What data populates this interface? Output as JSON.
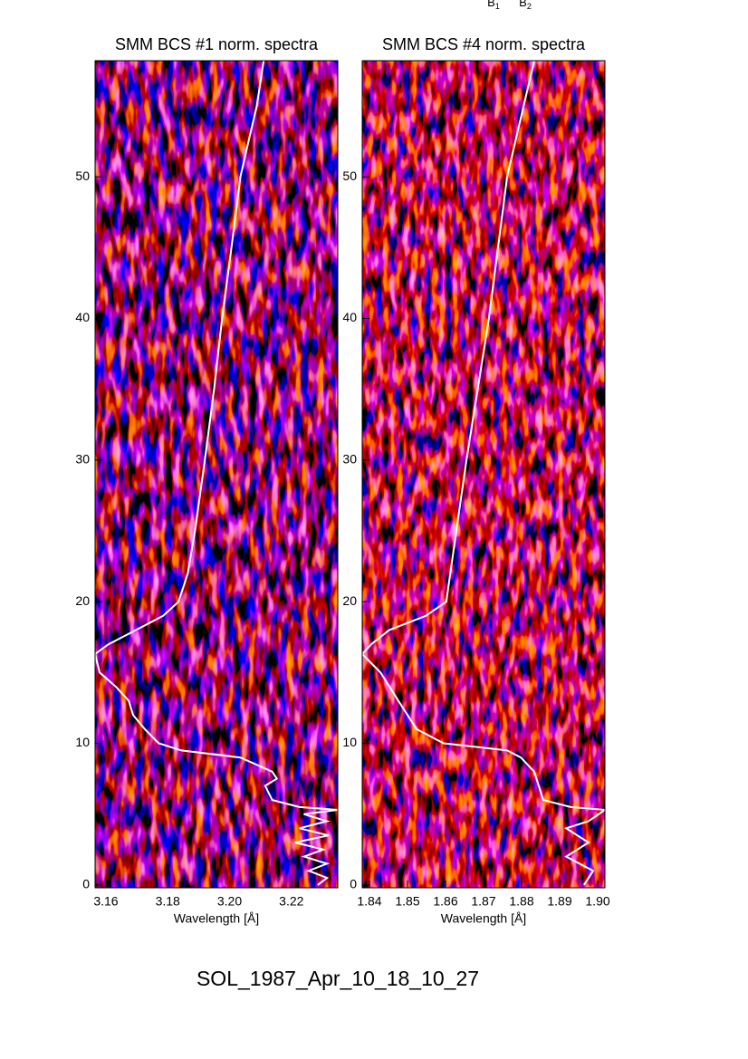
{
  "header_labels": [
    {
      "base": "B",
      "sub": "1"
    },
    {
      "base": "B",
      "sub": "2"
    }
  ],
  "footer": "SOL_1987_Apr_10_18_10_27",
  "chart_data": [
    {
      "type": "line",
      "title": "SMM BCS #1 norm. spectra",
      "x_label": "Wavelength [Å]",
      "xlim": [
        3.1565,
        3.235
      ],
      "xticks": [
        3.16,
        3.18,
        {
          "value": 3.2,
          "label": "3.20"
        },
        3.22
      ],
      "ylim": [
        -0.2,
        58.2
      ],
      "yticks": [
        0,
        10,
        20,
        30,
        40,
        50
      ],
      "series": [
        {
          "color": "#ffffff",
          "x": [
            3.211,
            3.2088,
            3.2056,
            3.2035,
            3.2006,
            3.1976,
            3.195,
            3.192,
            3.1888,
            3.1865,
            3.1835,
            3.1785,
            3.1697,
            3.1609,
            3.1565,
            3.158,
            3.1632,
            3.1674,
            3.1688,
            3.1726,
            3.1771,
            3.1844,
            3.2035,
            3.2138,
            3.2153,
            3.2115,
            3.2138,
            3.2226,
            3.235,
            3.224,
            3.2315,
            3.2226,
            3.232,
            3.2212,
            3.2303,
            3.2241,
            3.2315,
            3.2256,
            3.2315,
            3.2285
          ],
          "values": [
            58.2,
            55,
            52,
            50,
            45,
            40,
            35,
            30,
            25,
            22,
            20,
            19,
            18,
            17,
            16.3,
            15,
            14,
            13,
            12,
            11,
            10,
            9.5,
            9,
            8,
            7.5,
            7,
            6,
            5.5,
            5.3,
            5,
            4.5,
            4,
            3.5,
            3,
            2.5,
            2,
            1.5,
            1,
            0.5,
            0
          ]
        }
      ]
    },
    {
      "type": "line",
      "title": "SMM BCS #4 norm. spectra",
      "x_label": "Wavelength [Å]",
      "xlim": [
        1.8381,
        1.9019
      ],
      "xticks": [
        1.84,
        1.85,
        1.86,
        1.87,
        1.88,
        1.89,
        {
          "value": 1.9,
          "label": "1.90"
        }
      ],
      "ylim": [
        -0.2,
        58.2
      ],
      "yticks": [
        0,
        10,
        20,
        30,
        40,
        50
      ],
      "series": [
        {
          "color": "#ffffff",
          "x": [
            1.8833,
            1.8762,
            1.8714,
            1.8655,
            1.8602,
            1.8548,
            1.8452,
            1.8405,
            1.8381,
            1.8429,
            1.8476,
            1.8524,
            1.8595,
            1.8762,
            1.8798,
            1.8833,
            1.8845,
            1.8857,
            1.8929,
            1.9019,
            1.8976,
            1.8917,
            1.8976,
            1.8917,
            1.8988,
            1.8964
          ],
          "values": [
            58.2,
            50,
            40,
            30,
            20,
            19,
            18,
            17,
            16.3,
            15,
            13,
            11,
            10,
            9.5,
            9,
            8,
            7,
            6,
            5.5,
            5.3,
            4.5,
            4,
            3,
            2,
            1,
            0
          ]
        }
      ]
    }
  ]
}
